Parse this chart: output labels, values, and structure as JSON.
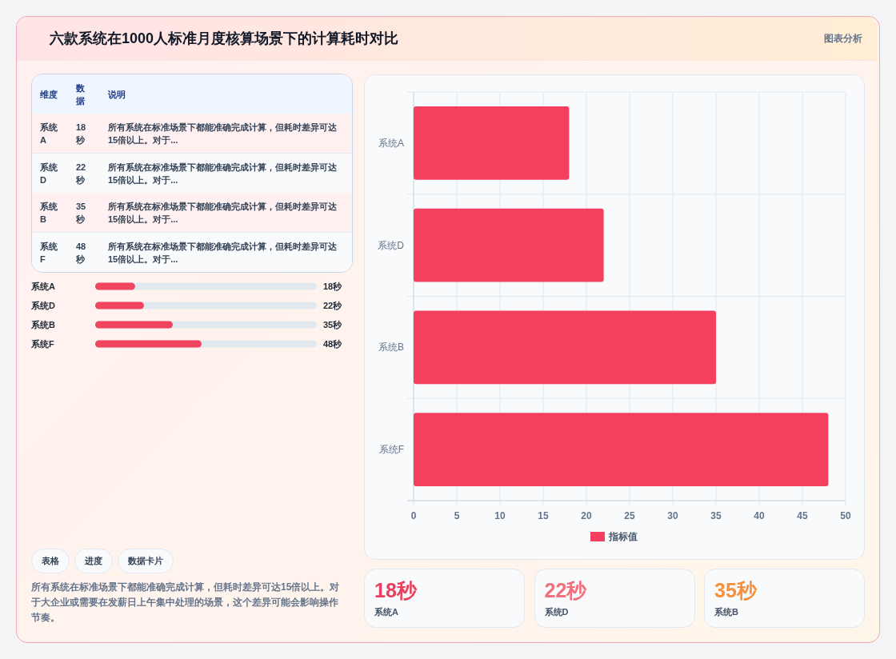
{
  "chart_data": [
    {
      "type": "bar",
      "title": "六款系统在1000人标准月度核算场景下的计算耗时对比",
      "subtitle": "图表分析",
      "orientation": "horizontal",
      "categories": [
        "系统A",
        "系统D",
        "系统B",
        "系统F"
      ],
      "series": [
        {
          "name": "指标值",
          "color": "#f43f5e",
          "values": [
            18,
            22,
            35,
            48
          ]
        }
      ],
      "xlim": [
        0,
        50
      ],
      "xticks": [
        0,
        5,
        10,
        15,
        20,
        25,
        30,
        35,
        40,
        45,
        50
      ],
      "grid": true,
      "legend": "bottom"
    },
    {
      "type": "other",
      "annotations": [
        "维度",
        "数据",
        "说明",
        "系统A",
        "18秒",
        "所有系统在标准场景下都能准确完成计算，但耗时差异可达15倍以上。对于...",
        "系统D",
        "22秒",
        "所有系统在标准场景下都能准确完成计算，但耗时差异可达15倍以上。对于...",
        "系统B",
        "35秒",
        "所有系统在标准场景下都能准确完成计算，但耗时差异可达15倍以上。对于...",
        "系统F",
        "48秒",
        "所有系统在标准场景下都能准确完成计算，但耗时差异可达15倍以上。对于..."
      ]
    },
    {
      "type": "bar",
      "orientation": "horizontal",
      "categories": [
        "系统A",
        "系统D",
        "系统B",
        "系统F"
      ],
      "values": [
        18,
        22,
        35,
        48
      ],
      "value_labels": [
        "18秒",
        "22秒",
        "35秒",
        "48秒"
      ],
      "color": "#ef4560",
      "xlim": [
        0,
        100
      ]
    },
    {
      "type": "other",
      "annotations": [
        "表格",
        "进度",
        "数据卡片",
        "所有系统在标准场景下都能准确完成计算，但耗时差异可达15倍以上。对于大企业或需要在发薪日上午集中处理的场景，这个差异可能会影响操作节奏。"
      ]
    },
    {
      "type": "other",
      "categories": [
        "系统A",
        "系统D",
        "系统B"
      ],
      "value_labels": [
        "18秒",
        "22秒",
        "35秒"
      ]
    }
  ]
}
